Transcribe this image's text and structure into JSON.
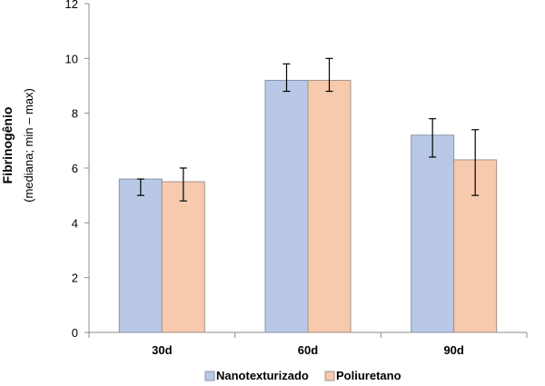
{
  "chart_data": {
    "type": "bar",
    "ylabel": "Fibrinogênio",
    "ylabel_sub": "(mediana;  min – max)",
    "xlabel": "",
    "ylim": [
      0,
      12
    ],
    "yticks": [
      0,
      2,
      4,
      6,
      8,
      10,
      12
    ],
    "grid": false,
    "legend_position": "bottom-center",
    "categories": [
      "30d",
      "60d",
      "90d"
    ],
    "series": [
      {
        "name": "Nanotexturizado",
        "color": "#b8c8e6",
        "edge": "#8a93a8",
        "values": [
          5.6,
          9.2,
          7.2
        ],
        "err_low": [
          5.0,
          8.8,
          6.4
        ],
        "err_high": [
          5.6,
          9.8,
          7.8
        ]
      },
      {
        "name": "Poliuretano",
        "color": "#f7c9ad",
        "edge": "#a3948a",
        "values": [
          5.5,
          9.2,
          6.3
        ],
        "err_low": [
          4.8,
          8.8,
          5.0
        ],
        "err_high": [
          6.0,
          10.0,
          7.4
        ]
      }
    ]
  }
}
